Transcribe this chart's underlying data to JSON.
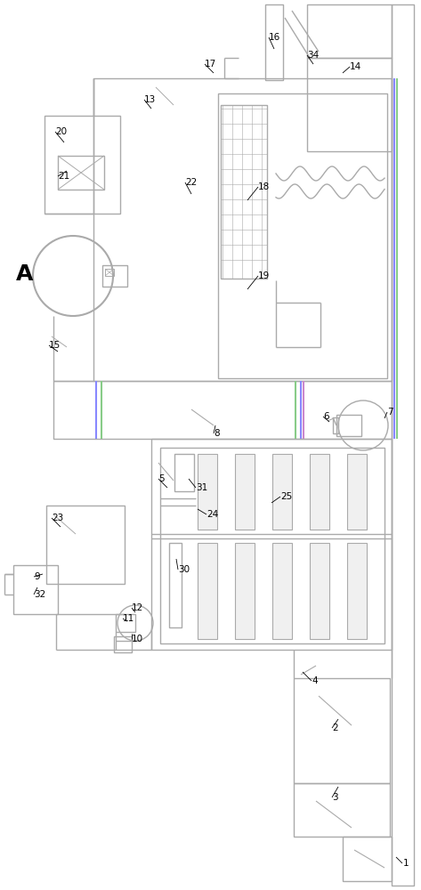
{
  "bg": "#ffffff",
  "lc": "#aaaaaa",
  "bc": "#8888ff",
  "gc": "#88cc88",
  "pc": "#cc88cc",
  "lw": 1.0,
  "lw2": 1.5
}
